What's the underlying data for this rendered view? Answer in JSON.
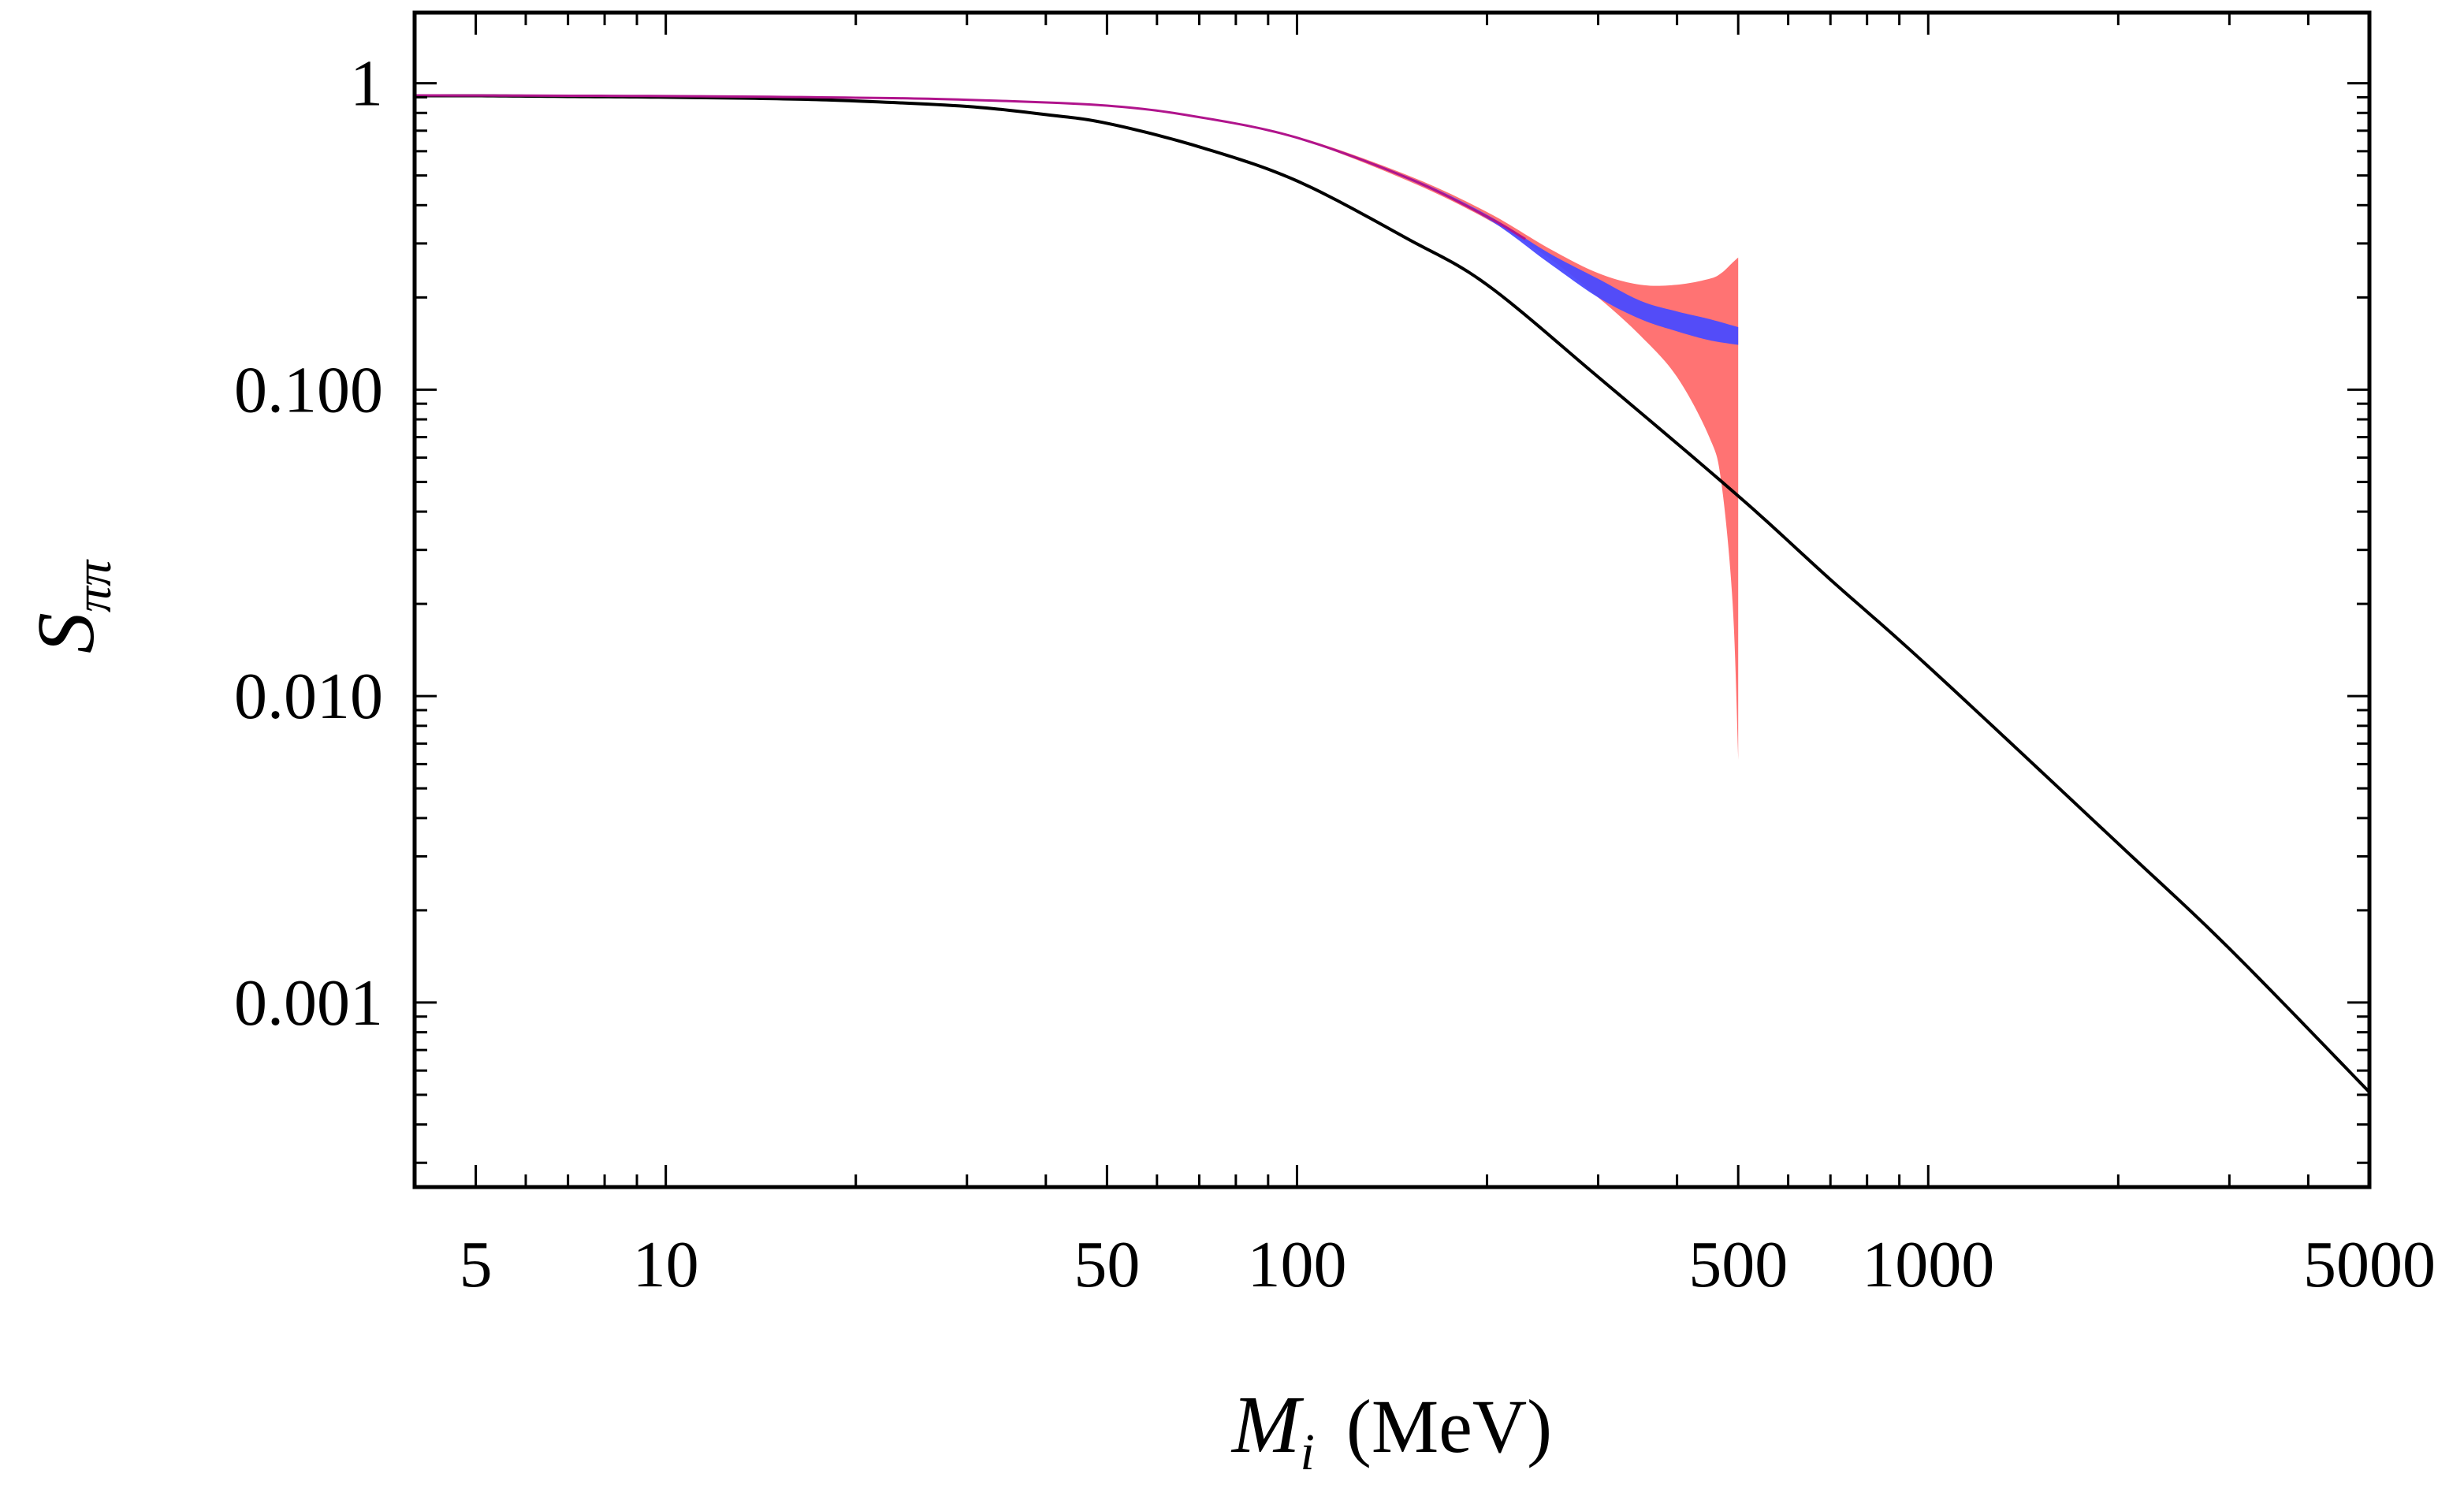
{
  "chart_data": {
    "type": "line",
    "xscale": "log",
    "yscale": "log",
    "xlim": [
      4,
      5000
    ],
    "ylim": [
      0.00025,
      1.7
    ],
    "xlabel": {
      "main": "M",
      "sub": "i",
      "unit": "(MeV)"
    },
    "ylabel": {
      "main": "S",
      "sub": "ππ"
    },
    "xticks": [
      {
        "value": 5,
        "label": "5"
      },
      {
        "value": 10,
        "label": "10"
      },
      {
        "value": 50,
        "label": "50"
      },
      {
        "value": 100,
        "label": "100"
      },
      {
        "value": 500,
        "label": "500"
      },
      {
        "value": 1000,
        "label": "1000"
      },
      {
        "value": 5000,
        "label": "5000"
      }
    ],
    "yticks": [
      {
        "value": 1,
        "label": "1"
      },
      {
        "value": 0.1,
        "label": "0.100"
      },
      {
        "value": 0.01,
        "label": "0.010"
      },
      {
        "value": 0.001,
        "label": "0.001"
      }
    ],
    "grid": false,
    "legend": false,
    "colors": {
      "line": "#000000",
      "red_band": "#ff6b6b",
      "blue_band": "#4a4aff",
      "magenta_line": "#b0148c"
    },
    "series": [
      {
        "kind": "line",
        "color": "#000000",
        "x": [
          4,
          5,
          7,
          10,
          15,
          20,
          30,
          40,
          50,
          70,
          100,
          150,
          200,
          300,
          500,
          700,
          1000,
          2000,
          3000,
          5000
        ],
        "y": [
          0.91,
          0.91,
          0.905,
          0.9,
          0.89,
          0.875,
          0.84,
          0.79,
          0.74,
          0.62,
          0.48,
          0.31,
          0.22,
          0.11,
          0.045,
          0.024,
          0.0125,
          0.0033,
          0.0015,
          0.00051
        ]
      },
      {
        "kind": "band",
        "color": "#ff6b6b",
        "x": [
          4,
          10,
          20,
          30,
          50,
          70,
          100,
          150,
          200,
          250,
          300,
          350,
          400,
          450,
          470,
          490,
          500
        ],
        "y_low": [
          0.91,
          0.905,
          0.895,
          0.88,
          0.84,
          0.77,
          0.66,
          0.48,
          0.36,
          0.27,
          0.2,
          0.15,
          0.11,
          0.07,
          0.05,
          0.02,
          0.0062
        ],
        "y_high": [
          0.915,
          0.91,
          0.9,
          0.885,
          0.85,
          0.78,
          0.67,
          0.5,
          0.38,
          0.29,
          0.24,
          0.22,
          0.22,
          0.23,
          0.24,
          0.26,
          0.27
        ]
      },
      {
        "kind": "band",
        "color": "#4a4aff",
        "x": [
          4,
          10,
          20,
          30,
          50,
          70,
          100,
          150,
          200,
          250,
          300,
          350,
          400,
          450,
          500
        ],
        "y_low": [
          0.912,
          0.907,
          0.896,
          0.881,
          0.843,
          0.772,
          0.661,
          0.485,
          0.362,
          0.26,
          0.2,
          0.17,
          0.155,
          0.145,
          0.14
        ],
        "y_high": [
          0.914,
          0.909,
          0.899,
          0.885,
          0.848,
          0.778,
          0.668,
          0.495,
          0.372,
          0.28,
          0.23,
          0.195,
          0.18,
          0.17,
          0.16
        ]
      },
      {
        "kind": "line",
        "color": "#b0148c",
        "x": [
          4,
          10,
          20,
          30,
          50,
          70,
          100,
          150,
          200,
          230
        ],
        "y": [
          0.913,
          0.908,
          0.897,
          0.883,
          0.845,
          0.775,
          0.664,
          0.49,
          0.367,
          0.31
        ]
      }
    ]
  }
}
